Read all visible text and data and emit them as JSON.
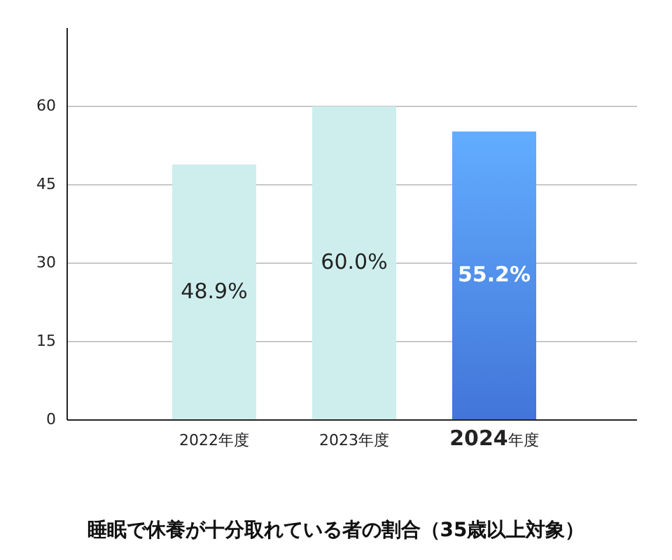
{
  "chart_data": {
    "type": "bar",
    "title": "睡眠で休養が十分取れている者の割合（35歳以上対象）",
    "categories": [
      "2022年度",
      "2023年度",
      "2024年度"
    ],
    "values": [
      48.9,
      60.0,
      55.2
    ],
    "colors": [
      "#cdeeed",
      "#cdeeed",
      "#4a82f0"
    ],
    "value_labels": [
      "48.9%",
      "60.0%",
      "55.2%"
    ],
    "ylim": [
      0,
      75
    ],
    "yticks": [
      0,
      15,
      30,
      45,
      60
    ],
    "grid": "y"
  }
}
